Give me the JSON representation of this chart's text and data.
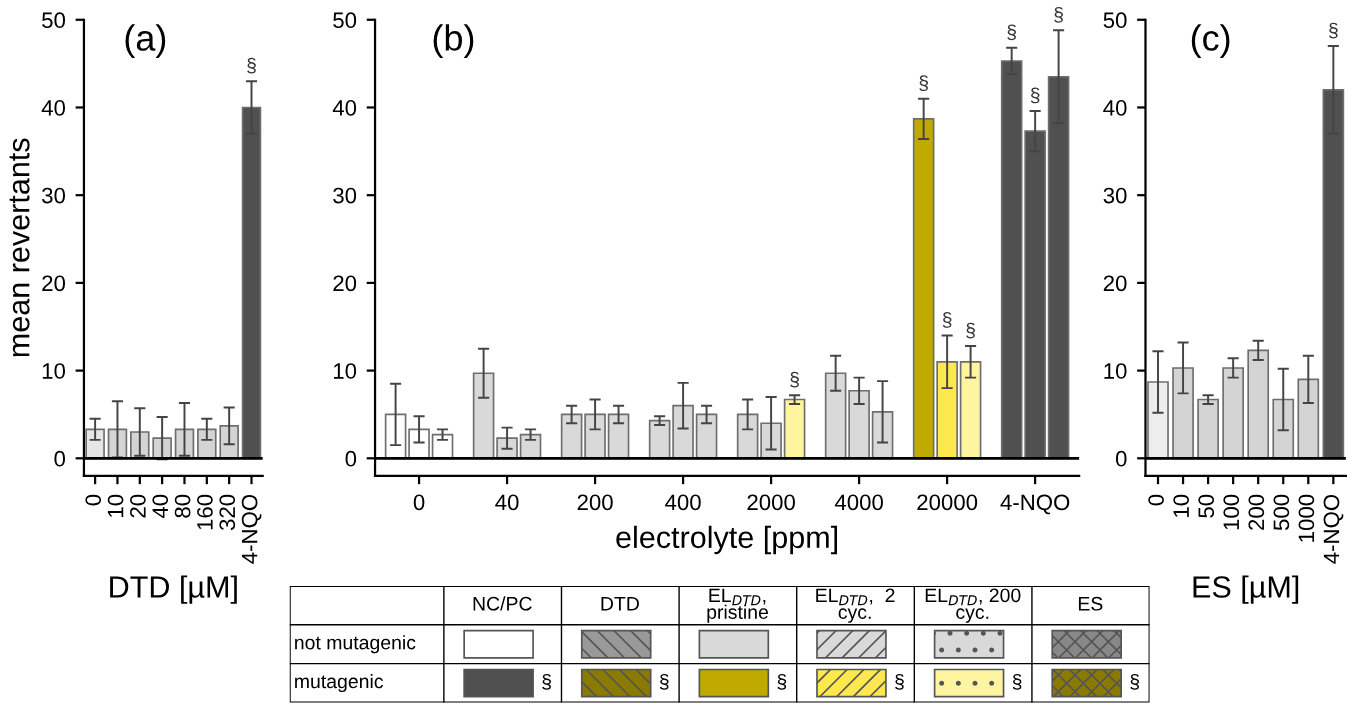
{
  "chart_data": [
    {
      "type": "bar",
      "title": "(a)",
      "xlabel": "DTD [µM]",
      "ylabel": "mean revertants",
      "categories": [
        "0",
        "10",
        "20",
        "40",
        "80",
        "160",
        "320",
        "4-NQO"
      ],
      "series": [
        {
          "colors": [
            "#e6e6e6",
            "#d4d4d4",
            "#d4d4d4",
            "#d4d4d4",
            "#d4d4d4",
            "#d4d4d4",
            "#d4d4d4",
            "#505050"
          ],
          "values": [
            3.3,
            3.3,
            3.0,
            2.3,
            3.3,
            3.3,
            3.7,
            40.0
          ],
          "errors": [
            1.2,
            3.2,
            2.7,
            2.4,
            3.0,
            1.2,
            2.1,
            3.0
          ],
          "value_labels": [
            null,
            null,
            null,
            null,
            null,
            null,
            null,
            "§"
          ]
        }
      ],
      "ylim": [
        -2,
        50
      ],
      "yticks": [
        0,
        10,
        20,
        30,
        40,
        50
      ],
      "ref_lines": [
        {
          "axis": "y",
          "value": 0
        }
      ],
      "grid": false
    },
    {
      "type": "bar",
      "title": "(b)",
      "xlabel": "electrolyte [ppm]",
      "categories": [
        "0",
        "40",
        "200",
        "400",
        "2000",
        "4000",
        "20000",
        "4-NQO"
      ],
      "series": [
        {
          "colors": [
            "#ffffff",
            "#d9d9d9",
            "#d9d9d9",
            "#d9d9d9",
            "#d9d9d9",
            "#d9d9d9",
            "#c0aa00",
            "#505050"
          ],
          "values": [
            5.0,
            9.7,
            5.0,
            4.3,
            5.0,
            9.7,
            38.7,
            45.3
          ],
          "errors": [
            3.5,
            2.8,
            1.0,
            0.5,
            1.7,
            2.0,
            2.3,
            1.5
          ],
          "value_labels": [
            null,
            null,
            null,
            null,
            null,
            null,
            "§",
            "§"
          ]
        },
        {
          "colors": [
            "#ffffff",
            "#d9d9d9",
            "#d9d9d9",
            "#d9d9d9",
            "#d9d9d9",
            "#d9d9d9",
            "#ffe84d",
            "#505050"
          ],
          "values": [
            3.3,
            2.3,
            5.0,
            6.0,
            4.0,
            7.7,
            11.0,
            37.3
          ],
          "errors": [
            1.5,
            1.2,
            1.7,
            2.6,
            3.0,
            1.5,
            3.0,
            2.3
          ],
          "value_labels": [
            null,
            null,
            null,
            null,
            null,
            null,
            "§",
            "§"
          ]
        },
        {
          "colors": [
            "#ffffff",
            "#d9d9d9",
            "#d9d9d9",
            "#d9d9d9",
            "#fff4a0",
            "#d9d9d9",
            "#fff4a0",
            "#505050"
          ],
          "values": [
            2.7,
            2.7,
            5.0,
            5.0,
            6.7,
            5.3,
            11.0,
            43.5
          ],
          "errors": [
            0.6,
            0.6,
            1.0,
            1.0,
            0.5,
            3.5,
            1.8,
            5.3
          ],
          "value_labels": [
            null,
            null,
            null,
            null,
            "§",
            null,
            "§",
            "§"
          ]
        }
      ],
      "ylim": [
        -2,
        50
      ],
      "yticks": [
        0,
        10,
        20,
        30,
        40,
        50
      ],
      "ref_lines": [
        {
          "axis": "y",
          "value": 0
        }
      ],
      "grid": false
    },
    {
      "type": "bar",
      "title": "(c)",
      "xlabel": "ES [µM]",
      "categories": [
        "0",
        "10",
        "50",
        "100",
        "200",
        "500",
        "1000",
        "4-NQO"
      ],
      "series": [
        {
          "colors": [
            "#ededed",
            "#d4d4d4",
            "#d4d4d4",
            "#d4d4d4",
            "#d4d4d4",
            "#d4d4d4",
            "#d4d4d4",
            "#505050"
          ],
          "values": [
            8.7,
            10.3,
            6.7,
            10.3,
            12.3,
            6.7,
            9.0,
            42.0
          ],
          "errors": [
            3.5,
            2.9,
            0.5,
            1.1,
            1.1,
            3.5,
            2.7,
            5.0
          ],
          "value_labels": [
            null,
            null,
            null,
            null,
            null,
            null,
            null,
            "§"
          ]
        }
      ],
      "ylim": [
        -2,
        50
      ],
      "yticks": [
        0,
        10,
        20,
        30,
        40,
        50
      ],
      "ref_lines": [
        {
          "axis": "y",
          "value": 0
        }
      ],
      "grid": false
    },
    {
      "type": "other",
      "annotations": [
        "NC/PC",
        "DTD",
        "EL$_{DTD}$,\npristine",
        "EL$_{DTD}$,  2\ncyc.",
        "EL$_{DTD}$, 200\ncyc.",
        "ES",
        "not mutagenic",
        "mutagenic",
        "§",
        "§",
        "§",
        "§",
        "§",
        "§"
      ]
    }
  ]
}
